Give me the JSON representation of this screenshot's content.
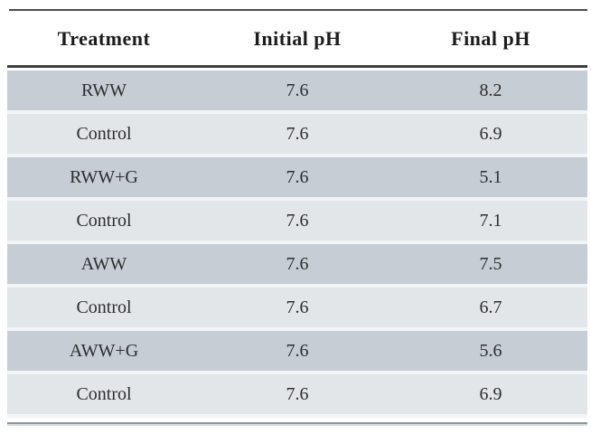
{
  "table": {
    "columns": [
      "Treatment",
      "Initial pH",
      "Final pH"
    ],
    "rows": [
      {
        "treatment": "RWW",
        "initial_ph": "7.6",
        "final_ph": "8.2"
      },
      {
        "treatment": "Control",
        "initial_ph": "7.6",
        "final_ph": "6.9"
      },
      {
        "treatment": "RWW+G",
        "initial_ph": "7.6",
        "final_ph": "5.1"
      },
      {
        "treatment": "Control",
        "initial_ph": "7.6",
        "final_ph": "7.1"
      },
      {
        "treatment": "AWW",
        "initial_ph": "7.6",
        "final_ph": "7.5"
      },
      {
        "treatment": "Control",
        "initial_ph": "7.6",
        "final_ph": "6.7"
      },
      {
        "treatment": "AWW+G",
        "initial_ph": "7.6",
        "final_ph": "5.6"
      },
      {
        "treatment": "Control",
        "initial_ph": "7.6",
        "final_ph": "6.9"
      }
    ]
  },
  "colors": {
    "row_dark": "#c6cdd4",
    "row_light": "#e2e6e9",
    "row_gap": "#f2f4f5",
    "top_rule": "#4c4c4c",
    "header_rule": "#3e3e3e",
    "bottom_rule": "#8f969b",
    "header_text": "#1c1c1c",
    "body_text": "#2e2e2e"
  }
}
